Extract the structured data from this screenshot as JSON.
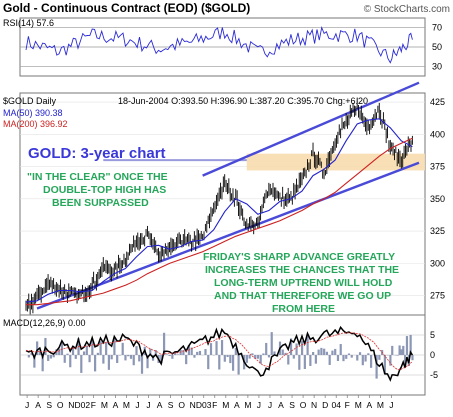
{
  "header": {
    "title": "Gold - Continuous Contract (EOD) ($GOLD)",
    "copyright": "© StockCharts.com"
  },
  "colors": {
    "rsi_line": "#2b2bd6",
    "price_bars": "#000000",
    "ma50": "#2222cc",
    "ma200": "#cc2222",
    "trend_channel": "#4a4ad8",
    "resistance_band": "#f7dcae",
    "macd_line": "#000000",
    "histogram": "#8c97b5",
    "annotation_title": "#3a38d8",
    "annotation_green": "#26a65b"
  },
  "chart_data": [
    {
      "type": "line",
      "panel": "rsi",
      "label": "RSI(14)",
      "last_value_text": "57.6",
      "ylim": [
        20,
        80
      ],
      "y_ticks": [
        "70",
        "50",
        "30"
      ],
      "x": [
        "2001-07",
        "2001-10",
        "2002-01",
        "2002-04",
        "2002-07",
        "2002-10",
        "2003-01",
        "2003-04",
        "2003-07",
        "2003-10",
        "2004-01",
        "2004-04",
        "2004-06"
      ],
      "values": [
        55,
        45,
        62,
        58,
        48,
        55,
        66,
        44,
        57,
        63,
        62,
        38,
        57.6
      ]
    },
    {
      "type": "line",
      "panel": "price",
      "label": "$GOLD Daily",
      "date_text": "18-Jun-2004",
      "ohlc_text": {
        "open": "O:393.50",
        "high": "H:396.90",
        "low": "L:387.20",
        "close": "C:395.70",
        "change": "Chg:+6.20"
      },
      "ylim": [
        260,
        432
      ],
      "y_ticks": [
        "425",
        "400",
        "375",
        "350",
        "325",
        "300",
        "275"
      ],
      "x": [
        "2001-07",
        "2001-08",
        "2001-09",
        "2001-10",
        "2001-11",
        "2001-12",
        "2002-01",
        "2002-02",
        "2002-03",
        "2002-04",
        "2002-05",
        "2002-06",
        "2002-07",
        "2002-08",
        "2002-09",
        "2002-10",
        "2002-11",
        "2002-12",
        "2003-01",
        "2003-02",
        "2003-03",
        "2003-04",
        "2003-05",
        "2003-06",
        "2003-07",
        "2003-08",
        "2003-09",
        "2003-10",
        "2003-11",
        "2003-12",
        "2004-01",
        "2004-02",
        "2004-03",
        "2004-04",
        "2004-05",
        "2004-06"
      ],
      "series": [
        {
          "name": "Price",
          "values": [
            266,
            273,
            285,
            280,
            276,
            276,
            282,
            297,
            293,
            304,
            318,
            322,
            306,
            310,
            318,
            316,
            320,
            343,
            362,
            350,
            330,
            330,
            360,
            350,
            350,
            365,
            385,
            370,
            395,
            410,
            420,
            405,
            420,
            390,
            380,
            395.7
          ]
        },
        {
          "name": "MA(50)",
          "last_value_text": "390.38",
          "values": [
            270,
            271,
            276,
            279,
            279,
            278,
            279,
            286,
            292,
            296,
            305,
            313,
            314,
            311,
            313,
            317,
            318,
            326,
            340,
            350,
            346,
            338,
            341,
            348,
            350,
            356,
            368,
            373,
            380,
            395,
            408,
            411,
            412,
            405,
            395,
            390.38
          ]
        },
        {
          "name": "MA(200)",
          "last_value_text": "396.92",
          "values": [
            268,
            268,
            269,
            270,
            271,
            273,
            275,
            277,
            280,
            283,
            287,
            292,
            296,
            300,
            303,
            306,
            309,
            313,
            317,
            321,
            324,
            327,
            330,
            333,
            337,
            341,
            346,
            350,
            355,
            362,
            369,
            376,
            383,
            389,
            393,
            396.92
          ]
        }
      ],
      "resistance_zone": [
        372,
        385
      ]
    },
    {
      "type": "line",
      "panel": "macd",
      "label": "MACD(12,26,9)",
      "last_value_text": "0.00",
      "ylim": [
        -10,
        10
      ],
      "y_ticks": [
        "5",
        "0",
        "-5"
      ],
      "x": [
        "2001-07",
        "2001-10",
        "2002-01",
        "2002-04",
        "2002-07",
        "2002-10",
        "2003-01",
        "2003-04",
        "2003-07",
        "2003-10",
        "2004-01",
        "2004-04",
        "2004-06"
      ],
      "values": [
        0,
        2,
        3,
        4,
        -1,
        2,
        6,
        -5,
        3,
        5,
        6,
        -6,
        0
      ]
    }
  ],
  "annotations": {
    "chart_title": "GOLD: 3-year chart",
    "clear_line1": "\"IN THE CLEAR\" ONCE THE",
    "clear_line2": "DOUBLE-TOP HIGH HAS",
    "clear_line3": "BEEN SURPASSED",
    "friday_line1": "FRIDAY'S SHARP ADVANCE GREATLY",
    "friday_line2": "INCREASES THE CHANCES THAT THE",
    "friday_line3": "LONG-TERM UPTREND WILL HOLD",
    "friday_line4": "AND THAT THEREFORE WE GO UP",
    "friday_line5": "FROM HERE"
  },
  "x_axis": {
    "labels": [
      "J",
      "A",
      "S",
      "O",
      "N",
      "D02",
      "F",
      "M",
      "A",
      "M",
      "J",
      "J",
      "A",
      "S",
      "O",
      "N",
      "D03",
      "F",
      "M",
      "A",
      "M",
      "J",
      "J",
      "A",
      "S",
      "O",
      "N",
      "D",
      "04",
      "F",
      "M",
      "A",
      "M",
      "J"
    ]
  }
}
